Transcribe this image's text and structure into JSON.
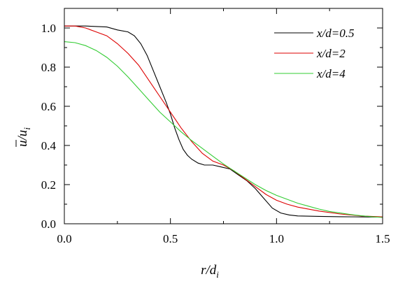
{
  "chart_data": {
    "type": "line",
    "xlabel": "r/d",
    "xlabel_sub": "i",
    "ylabel_num": "u",
    "ylabel_den": "u",
    "ylabel_den_sub": "i",
    "xlim": [
      0.0,
      1.5
    ],
    "ylim": [
      0.0,
      1.1
    ],
    "xticks": [
      "0.0",
      "0.5",
      "1.0",
      "1.5"
    ],
    "yticks": [
      "0.0",
      "0.2",
      "0.4",
      "0.6",
      "0.8",
      "1.0"
    ],
    "grid": false,
    "legend_position": "top-right",
    "series": [
      {
        "name": "x/d=0.5",
        "color": "#000000",
        "x": [
          0.0,
          0.1,
          0.2,
          0.25,
          0.3,
          0.33,
          0.36,
          0.39,
          0.42,
          0.45,
          0.48,
          0.5,
          0.52,
          0.54,
          0.56,
          0.58,
          0.6,
          0.63,
          0.66,
          0.7,
          0.74,
          0.78,
          0.82,
          0.86,
          0.9,
          0.94,
          0.98,
          1.02,
          1.06,
          1.1,
          1.2,
          1.3,
          1.4,
          1.5
        ],
        "y": [
          1.01,
          1.01,
          1.005,
          0.99,
          0.98,
          0.96,
          0.92,
          0.86,
          0.78,
          0.7,
          0.62,
          0.56,
          0.49,
          0.43,
          0.38,
          0.35,
          0.33,
          0.31,
          0.3,
          0.3,
          0.29,
          0.28,
          0.25,
          0.22,
          0.18,
          0.13,
          0.08,
          0.055,
          0.045,
          0.04,
          0.038,
          0.036,
          0.035,
          0.034
        ]
      },
      {
        "name": "x/d=2",
        "color": "#dd0000",
        "x": [
          0.0,
          0.05,
          0.1,
          0.15,
          0.2,
          0.25,
          0.3,
          0.35,
          0.4,
          0.45,
          0.5,
          0.55,
          0.6,
          0.65,
          0.7,
          0.75,
          0.8,
          0.85,
          0.9,
          0.95,
          1.0,
          1.05,
          1.1,
          1.2,
          1.3,
          1.4,
          1.5
        ],
        "y": [
          1.01,
          1.01,
          1.0,
          0.98,
          0.96,
          0.92,
          0.87,
          0.81,
          0.73,
          0.65,
          0.57,
          0.49,
          0.42,
          0.36,
          0.32,
          0.3,
          0.27,
          0.23,
          0.19,
          0.15,
          0.12,
          0.1,
          0.085,
          0.065,
          0.05,
          0.04,
          0.035
        ]
      },
      {
        "name": "x/d=4",
        "color": "#33cc33",
        "x": [
          0.0,
          0.05,
          0.1,
          0.15,
          0.2,
          0.25,
          0.3,
          0.35,
          0.4,
          0.45,
          0.5,
          0.55,
          0.6,
          0.65,
          0.7,
          0.75,
          0.8,
          0.85,
          0.9,
          0.95,
          1.0,
          1.05,
          1.1,
          1.15,
          1.2,
          1.25,
          1.3,
          1.35,
          1.4,
          1.45,
          1.5
        ],
        "y": [
          0.93,
          0.925,
          0.91,
          0.885,
          0.85,
          0.805,
          0.75,
          0.69,
          0.63,
          0.57,
          0.52,
          0.47,
          0.425,
          0.385,
          0.345,
          0.305,
          0.27,
          0.235,
          0.2,
          0.17,
          0.145,
          0.125,
          0.105,
          0.09,
          0.075,
          0.063,
          0.055,
          0.047,
          0.041,
          0.036,
          0.032
        ]
      }
    ]
  }
}
